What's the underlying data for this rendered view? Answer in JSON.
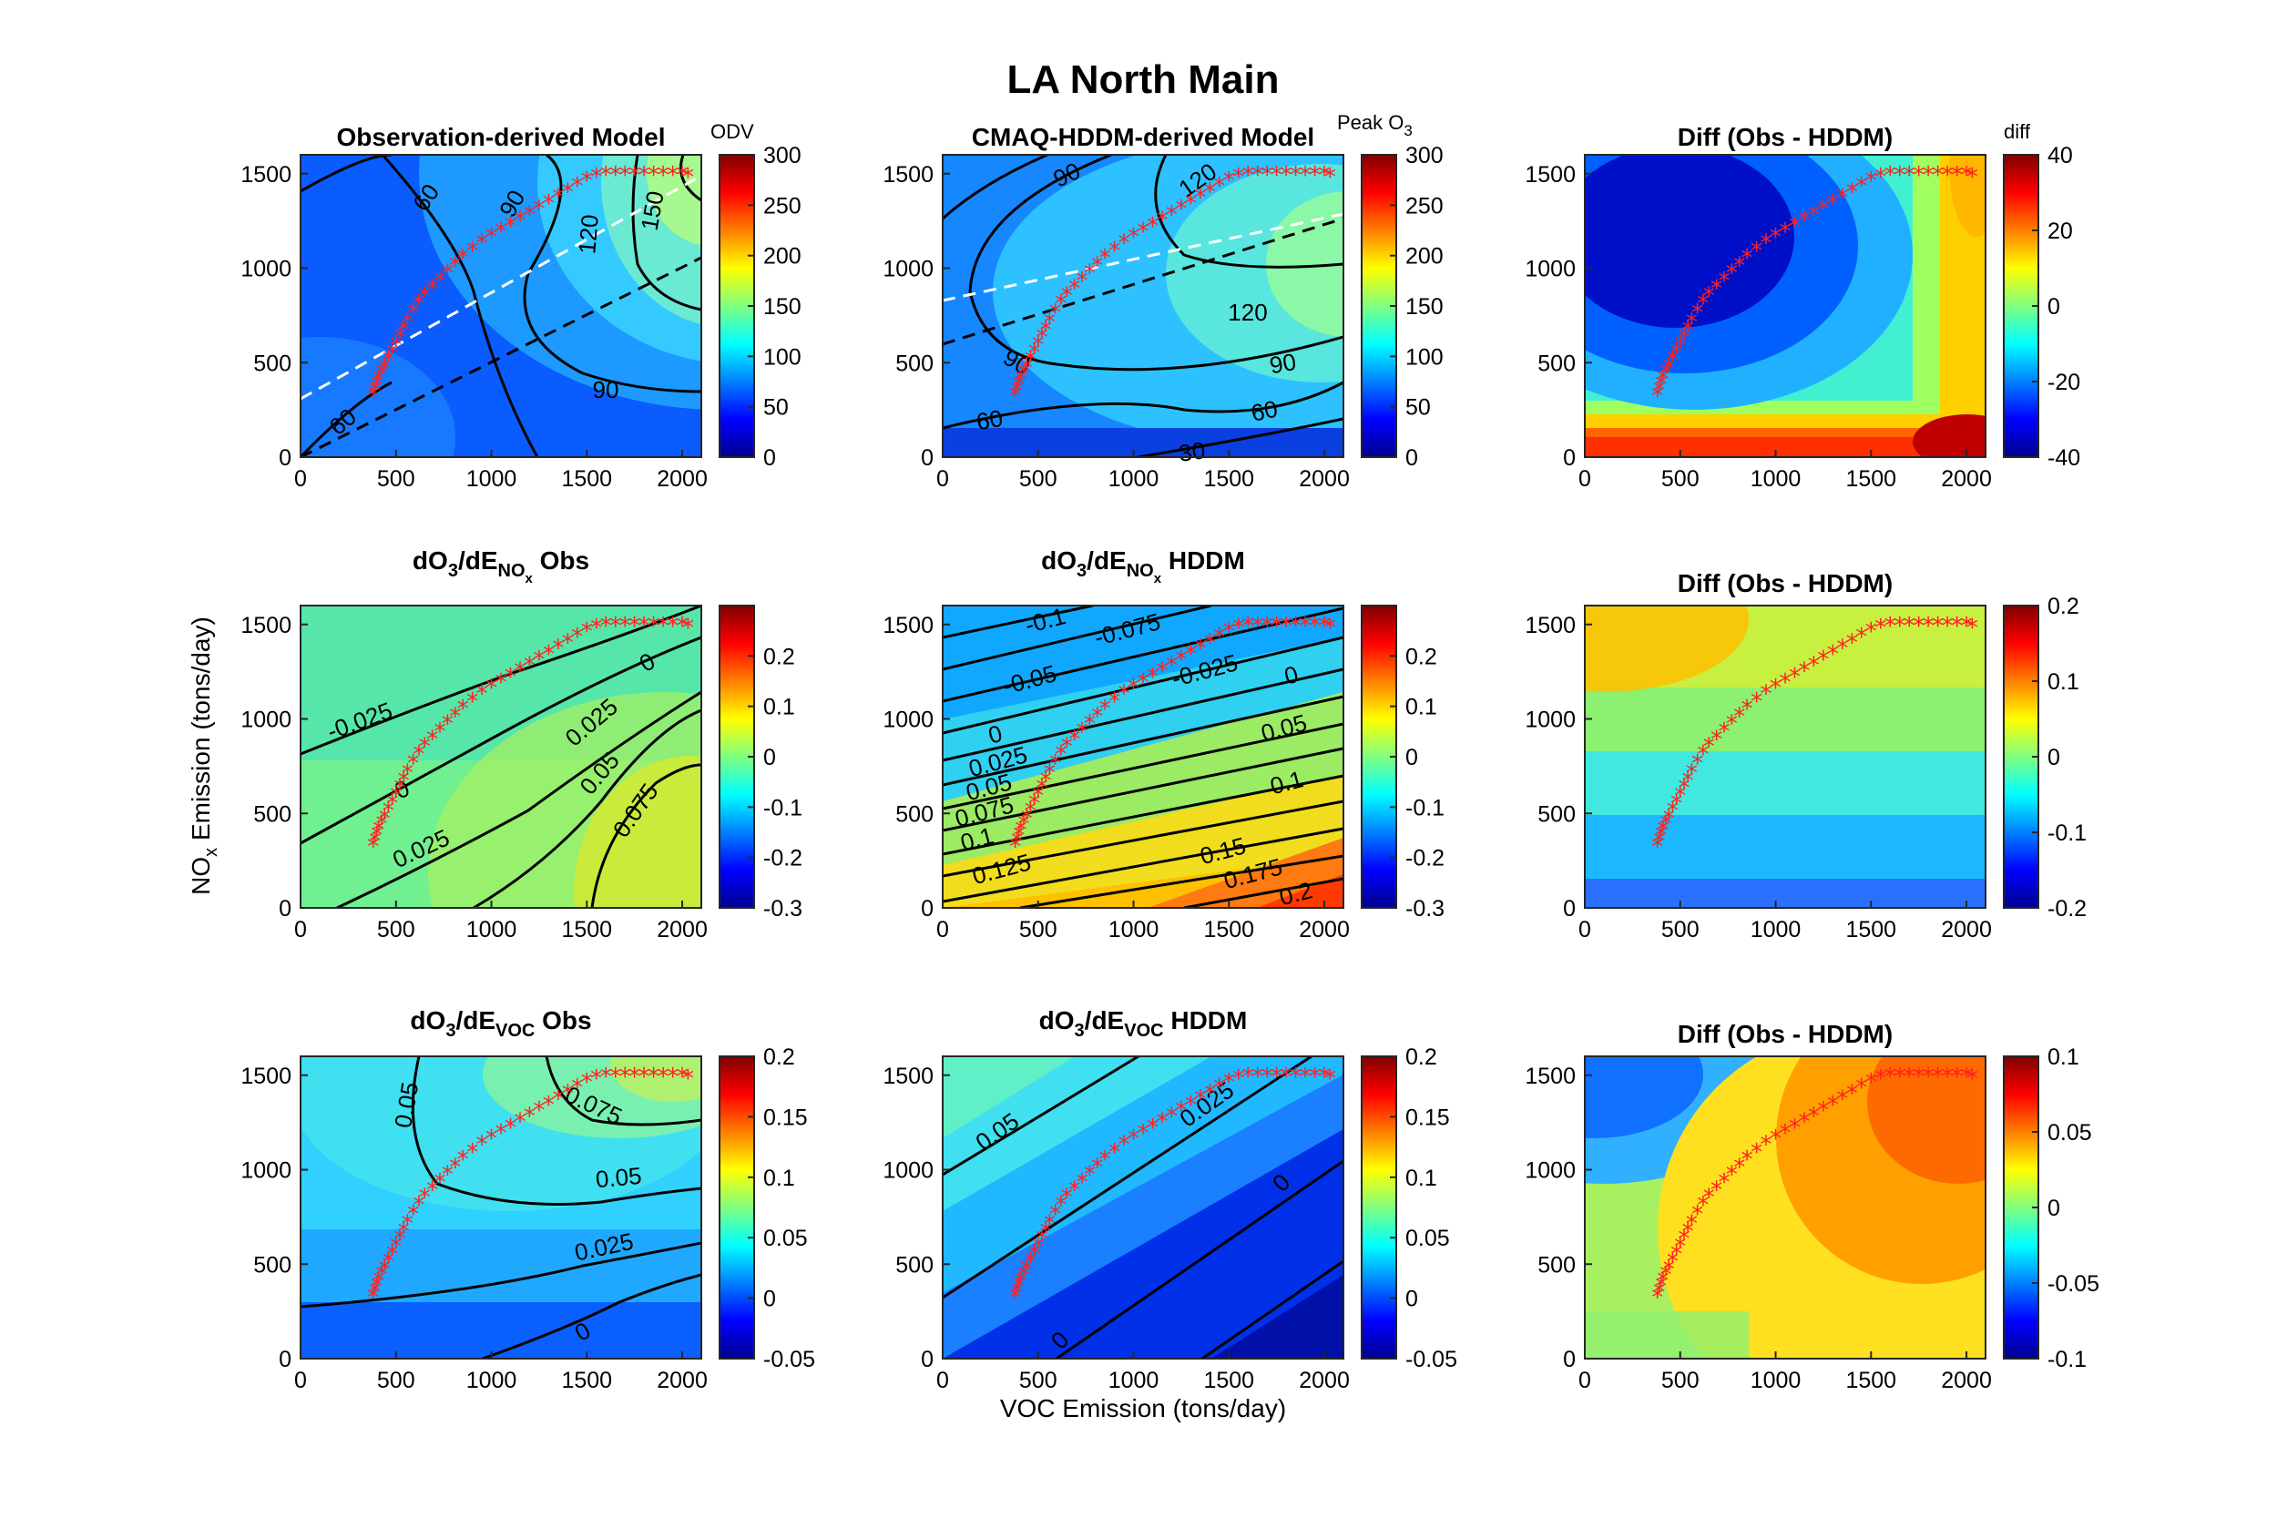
{
  "figure": {
    "title": "LA North Main",
    "xlabel": "VOC Emission (tons/day)",
    "ylabel_main": "NO",
    "ylabel_sub": "x",
    "ylabel_rest": " Emission (tons/day)"
  },
  "chart_data": [
    {
      "type": "heatmap",
      "title": "Observation-derived Model",
      "x": [
        0,
        2100
      ],
      "y": [
        0,
        1600
      ],
      "xticks": [
        0,
        500,
        1000,
        1500,
        2000
      ],
      "yticks": [
        0,
        500,
        1000,
        1500
      ],
      "colorbar": {
        "label": "ODV",
        "range": [
          0,
          300
        ],
        "ticks": [
          0,
          50,
          100,
          150,
          200,
          250,
          300
        ],
        "colormap": "jet"
      },
      "contour_labels": [
        "60",
        "90",
        "120",
        "150",
        "90",
        "60"
      ]
    },
    {
      "type": "heatmap",
      "title": "CMAQ-HDDM-derived Model",
      "x": [
        0,
        2100
      ],
      "y": [
        0,
        1600
      ],
      "xticks": [
        0,
        500,
        1000,
        1500,
        2000
      ],
      "yticks": [
        0,
        500,
        1000,
        1500
      ],
      "colorbar": {
        "label": "Peak O",
        "label_sub": "3",
        "range": [
          0,
          300
        ],
        "ticks": [
          0,
          50,
          100,
          150,
          200,
          250,
          300
        ],
        "colormap": "jet"
      },
      "contour_labels": [
        "90",
        "120",
        "120",
        "90",
        "60",
        "60",
        "90",
        "30"
      ]
    },
    {
      "type": "heatmap",
      "title": "Diff (Obs - HDDM)",
      "x": [
        0,
        2100
      ],
      "y": [
        0,
        1600
      ],
      "xticks": [
        0,
        500,
        1000,
        1500,
        2000
      ],
      "yticks": [
        0,
        500,
        1000,
        1500
      ],
      "colorbar": {
        "label": "diff",
        "range": [
          -40,
          40
        ],
        "ticks": [
          -40,
          -20,
          0,
          20,
          40
        ],
        "colormap": "jet"
      }
    },
    {
      "type": "heatmap",
      "title_parts": [
        "dO",
        "3",
        "/dE",
        "NO",
        "x",
        " Obs"
      ],
      "x": [
        0,
        2100
      ],
      "y": [
        0,
        1600
      ],
      "xticks": [
        0,
        500,
        1000,
        1500,
        2000
      ],
      "yticks": [
        0,
        500,
        1000,
        1500
      ],
      "colorbar": {
        "range": [
          -0.3,
          0.3
        ],
        "ticks": [
          -0.3,
          -0.2,
          -0.1,
          0,
          0.1,
          0.2
        ],
        "colormap": "jet"
      },
      "contour_labels": [
        "-0.025",
        "0",
        "0.025",
        "0.05",
        "0.075",
        "0",
        "0.025"
      ]
    },
    {
      "type": "heatmap",
      "title_parts": [
        "dO",
        "3",
        "/dE",
        "NO",
        "x",
        " HDDM"
      ],
      "x": [
        0,
        2100
      ],
      "y": [
        0,
        1600
      ],
      "xticks": [
        0,
        500,
        1000,
        1500,
        2000
      ],
      "yticks": [
        0,
        500,
        1000,
        1500
      ],
      "colorbar": {
        "range": [
          -0.3,
          0.3
        ],
        "ticks": [
          -0.3,
          -0.2,
          -0.1,
          0,
          0.1,
          0.2
        ],
        "colormap": "jet"
      },
      "contour_labels": [
        "-0.1",
        "-0.075",
        "-0.05",
        "-0.025",
        "0",
        "0",
        "0.025",
        "0.05",
        "0.075",
        "0.1",
        "0.125",
        "0.05",
        "0.1",
        "0.15",
        "0.175",
        "0.2"
      ]
    },
    {
      "type": "heatmap",
      "title": "Diff (Obs - HDDM)",
      "x": [
        0,
        2100
      ],
      "y": [
        0,
        1600
      ],
      "xticks": [
        0,
        500,
        1000,
        1500,
        2000
      ],
      "yticks": [
        0,
        500,
        1000,
        1500
      ],
      "colorbar": {
        "range": [
          -0.2,
          0.2
        ],
        "ticks": [
          -0.2,
          -0.1,
          0,
          0.1,
          0.2
        ],
        "colormap": "jet"
      }
    },
    {
      "type": "heatmap",
      "title_parts": [
        "dO",
        "3",
        "/dE",
        "VOC",
        "",
        " Obs"
      ],
      "x": [
        0,
        2100
      ],
      "y": [
        0,
        1600
      ],
      "xticks": [
        0,
        500,
        1000,
        1500,
        2000
      ],
      "yticks": [
        0,
        500,
        1000,
        1500
      ],
      "colorbar": {
        "range": [
          -0.05,
          0.2
        ],
        "ticks": [
          -0.05,
          0,
          0.05,
          0.1,
          0.15,
          0.2
        ],
        "colormap": "jet"
      },
      "contour_labels": [
        "0.05",
        "0.075",
        "0.05",
        "0.025",
        "0"
      ]
    },
    {
      "type": "heatmap",
      "title_parts": [
        "dO",
        "3",
        "/dE",
        "VOC",
        "",
        " HDDM"
      ],
      "x": [
        0,
        2100
      ],
      "y": [
        0,
        1600
      ],
      "xticks": [
        0,
        500,
        1000,
        1500,
        2000
      ],
      "yticks": [
        0,
        500,
        1000,
        1500
      ],
      "colorbar": {
        "range": [
          -0.05,
          0.2
        ],
        "ticks": [
          -0.05,
          0,
          0.05,
          0.1,
          0.15,
          0.2
        ],
        "colormap": "jet"
      },
      "contour_labels": [
        "0.05",
        "0.025",
        "0",
        "0"
      ]
    },
    {
      "type": "heatmap",
      "title": "Diff (Obs - HDDM)",
      "x": [
        0,
        2100
      ],
      "y": [
        0,
        1600
      ],
      "xticks": [
        0,
        500,
        1000,
        1500,
        2000
      ],
      "yticks": [
        0,
        500,
        1000,
        1500
      ],
      "colorbar": {
        "range": [
          -0.1,
          0.1
        ],
        "ticks": [
          -0.1,
          -0.05,
          0,
          0.05,
          0.1
        ],
        "colormap": "jet"
      }
    }
  ],
  "trajectory": {
    "marker": "*",
    "color": "#ff2020",
    "points": [
      [
        380,
        330
      ],
      [
        390,
        360
      ],
      [
        400,
        390
      ],
      [
        410,
        420
      ],
      [
        425,
        450
      ],
      [
        440,
        480
      ],
      [
        460,
        520
      ],
      [
        480,
        560
      ],
      [
        500,
        600
      ],
      [
        520,
        640
      ],
      [
        540,
        680
      ],
      [
        560,
        720
      ],
      [
        590,
        770
      ],
      [
        620,
        820
      ],
      [
        650,
        860
      ],
      [
        690,
        900
      ],
      [
        730,
        940
      ],
      [
        770,
        980
      ],
      [
        810,
        1020
      ],
      [
        850,
        1060
      ],
      [
        900,
        1100
      ],
      [
        950,
        1140
      ],
      [
        1000,
        1170
      ],
      [
        1050,
        1200
      ],
      [
        1100,
        1230
      ],
      [
        1150,
        1260
      ],
      [
        1200,
        1290
      ],
      [
        1250,
        1320
      ],
      [
        1300,
        1350
      ],
      [
        1350,
        1380
      ],
      [
        1400,
        1410
      ],
      [
        1450,
        1440
      ],
      [
        1500,
        1470
      ],
      [
        1550,
        1490
      ],
      [
        1600,
        1500
      ],
      [
        1650,
        1500
      ],
      [
        1700,
        1500
      ],
      [
        1750,
        1500
      ],
      [
        1800,
        1500
      ],
      [
        1850,
        1500
      ],
      [
        1900,
        1500
      ],
      [
        1950,
        1500
      ],
      [
        2000,
        1500
      ],
      [
        2030,
        1490
      ]
    ]
  }
}
